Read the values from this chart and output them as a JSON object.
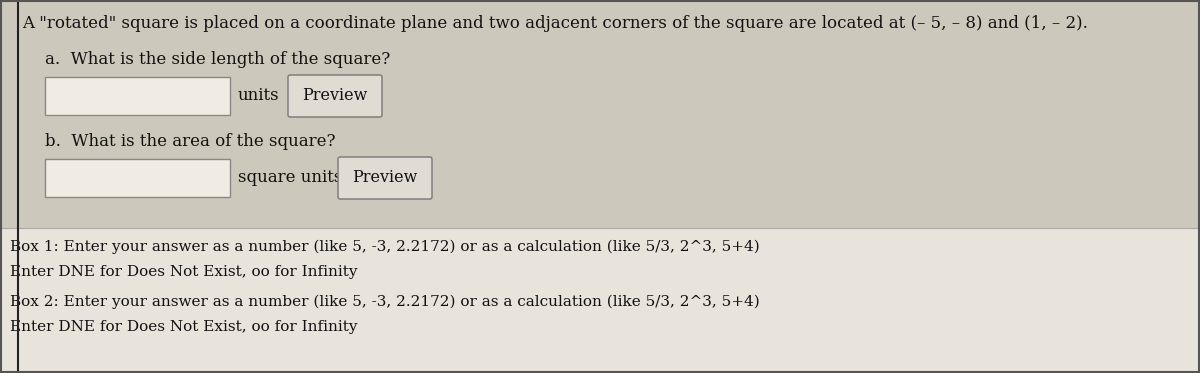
{
  "title": "A \"rotated\" square is placed on a coordinate plane and two adjacent corners of the square are located at (– 5, – 8) and (1, – 2).",
  "part_a_label": "a.  What is the side length of the square?",
  "part_a_suffix": "units",
  "part_b_label": "b.  What is the area of the square?",
  "part_b_suffix": "square units",
  "preview_text": "Preview",
  "box1_line1": "Box 1: Enter your answer as a number (like 5, -3, 2.2172) or as a calculation (like 5/3, 2^3, 5+4)",
  "box1_line2": "Enter DNE for Does Not Exist, oo for Infinity",
  "box2_line1": "Box 2: Enter your answer as a number (like 5, -3, 2.2172) or as a calculation (like 5/3, 2^3, 5+4)",
  "box2_line2": "Enter DNE for Does Not Exist, oo for Infinity",
  "bg_color_upper": "#cdc8bc",
  "bg_color_lower": "#e8e4dc",
  "box_color": "#e8e4dc",
  "input_box_color": "#d8d2c6",
  "border_color": "#666666",
  "text_color": "#111111",
  "left_line_color": "#222222",
  "figsize": [
    12.0,
    3.73
  ],
  "dpi": 100
}
